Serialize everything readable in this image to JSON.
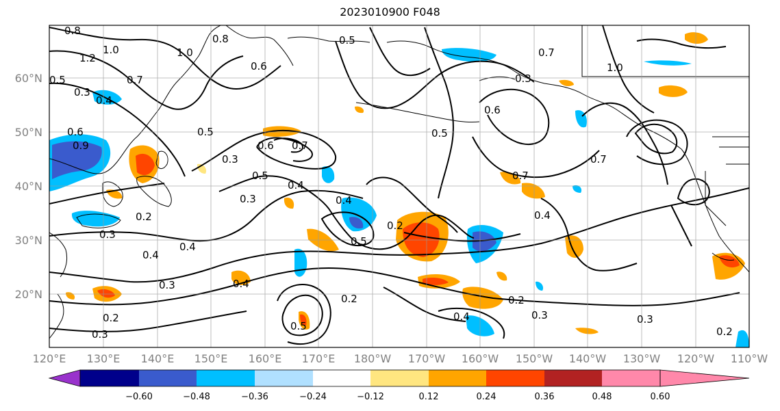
{
  "title": "2023010900 F048",
  "lat_labels": [
    "60°N",
    "50°N",
    "40°N",
    "30°N",
    "20°N"
  ],
  "lon_labels": [
    "120°E",
    "130°E",
    "140°E",
    "150°E",
    "160°E",
    "170°E",
    "180°W",
    "170°W",
    "160°W",
    "150°W",
    "140°W",
    "130°W",
    "120°W",
    "110°W"
  ],
  "colorbar": {
    "labels": [
      "−0.60",
      "−0.48",
      "−0.36",
      "−0.24",
      "−0.12",
      "0.12",
      "0.24",
      "0.36",
      "0.48",
      "0.60"
    ],
    "colors": [
      "#9932cc",
      "#00008b",
      "#3a5bcd",
      "#00bfff",
      "#b0e0ff",
      "#ffffff",
      "#ffe680",
      "#ffa500",
      "#ff4500",
      "#b22222",
      "#ff88aa"
    ]
  },
  "contour_labels": [
    "0.8",
    "1.0",
    "1.2",
    "0.5",
    "0.3",
    "0.4",
    "0.7",
    "0.6",
    "0.9",
    "1.0",
    "0.8",
    "0.6",
    "0.5",
    "0.7",
    "0.6",
    "0.5",
    "0.3",
    "0.4",
    "0.3",
    "0.4",
    "0.2",
    "0.2",
    "0.3",
    "0.4",
    "0.5",
    "0.4",
    "0.2",
    "0.5",
    "0.3",
    "0.4",
    "0.2",
    "0.3",
    "0.2",
    "0.3",
    "0.2",
    "0.5",
    "0.7",
    "0.6",
    "0.5",
    "0.3",
    "0.3",
    "0.7",
    "0.4",
    "0.4",
    "1.0",
    "0.7"
  ]
}
